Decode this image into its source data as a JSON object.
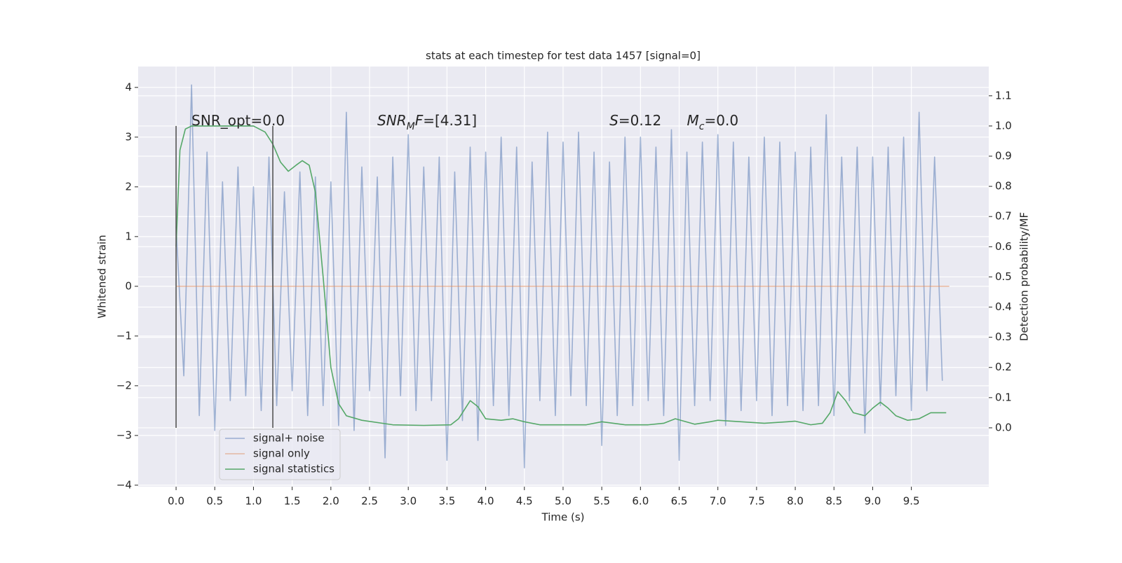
{
  "chart_data": {
    "type": "line",
    "title": "stats at each timestep for test data 1457 [signal=0]",
    "xlabel": "Time (s)",
    "ylabel": "Whitened strain",
    "y2label": "Detection probability/MF",
    "xlim": [
      -0.49,
      10.5
    ],
    "ylim": [
      -4.03,
      4.42
    ],
    "y2lim": [
      -0.195,
      1.197
    ],
    "xticks": [
      {
        "value": 0,
        "label": "0.0"
      },
      {
        "value": 0.5,
        "label": "0.5"
      },
      {
        "value": 1,
        "label": "1.0"
      },
      {
        "value": 1.5,
        "label": "1.5"
      },
      {
        "value": 2,
        "label": "2.0"
      },
      {
        "value": 2.5,
        "label": "2.5"
      },
      {
        "value": 3,
        "label": "3.0"
      },
      {
        "value": 3.5,
        "label": "3.5"
      },
      {
        "value": 4,
        "label": "4.0"
      },
      {
        "value": 4.5,
        "label": "4.5"
      },
      {
        "value": 5,
        "label": "5.0"
      },
      {
        "value": 5.5,
        "label": "5.5"
      },
      {
        "value": 6,
        "label": "6.0"
      },
      {
        "value": 6.5,
        "label": "6.5"
      },
      {
        "value": 7,
        "label": "7.0"
      },
      {
        "value": 7.5,
        "label": "7.5"
      },
      {
        "value": 8,
        "label": "8.0"
      },
      {
        "value": 8.5,
        "label": "8.5"
      },
      {
        "value": 9,
        "label": "9.0"
      },
      {
        "value": 9.5,
        "label": "9.5"
      }
    ],
    "yticks": [
      {
        "value": -4,
        "label": "−4"
      },
      {
        "value": -3,
        "label": "−3"
      },
      {
        "value": -2,
        "label": "−2"
      },
      {
        "value": -1,
        "label": "−1"
      },
      0,
      1,
      2,
      3,
      4
    ],
    "y2ticks": [
      {
        "value": 0,
        "label": "0.0"
      },
      {
        "value": 0.1,
        "label": "0.1"
      },
      {
        "value": 0.2,
        "label": "0.2"
      },
      {
        "value": 0.3,
        "label": "0.3"
      },
      {
        "value": 0.4,
        "label": "0.4"
      },
      {
        "value": 0.5,
        "label": "0.5"
      },
      {
        "value": 0.6,
        "label": "0.6"
      },
      {
        "value": 0.7,
        "label": "0.7"
      },
      {
        "value": 0.8,
        "label": "0.8"
      },
      {
        "value": 0.9,
        "label": "0.9"
      },
      {
        "value": 1,
        "label": "1.0"
      },
      {
        "value": 1.1,
        "label": "1.1"
      }
    ],
    "grid": true,
    "legend": "lower left",
    "series": [
      {
        "name": "signal+ noise",
        "color": "#4c72b0",
        "opacity": 0.5,
        "x": [
          0,
          0.1,
          0.2,
          0.3,
          0.4,
          0.5,
          0.6,
          0.7,
          0.8,
          0.9,
          1,
          1.1,
          1.2,
          1.3,
          1.4,
          1.5,
          1.6,
          1.7,
          1.8,
          1.9,
          2,
          2.1,
          2.2,
          2.3,
          2.4,
          2.5,
          2.6,
          2.7,
          2.8,
          2.9,
          3,
          3.1,
          3.2,
          3.3,
          3.4,
          3.5,
          3.6,
          3.7,
          3.8,
          3.9,
          4,
          4.1,
          4.2,
          4.3,
          4.4,
          4.5,
          4.6,
          4.7,
          4.8,
          4.9,
          5,
          5.1,
          5.2,
          5.3,
          5.4,
          5.5,
          5.6,
          5.7,
          5.8,
          5.9,
          6,
          6.1,
          6.2,
          6.3,
          6.4,
          6.5,
          6.6,
          6.7,
          6.8,
          6.9,
          7,
          7.1,
          7.2,
          7.3,
          7.4,
          7.5,
          7.6,
          7.7,
          7.8,
          7.9,
          8,
          8.1,
          8.2,
          8.3,
          8.4,
          8.5,
          8.6,
          8.7,
          8.8,
          8.9,
          9,
          9.1,
          9.2,
          9.3,
          9.4,
          9.5,
          9.6,
          9.7,
          9.8,
          9.9
        ],
        "values": [
          1.2,
          -1.8,
          4.05,
          -2.6,
          2.7,
          -2.9,
          2.1,
          -2.3,
          2.4,
          -2.2,
          2.0,
          -2.5,
          2.6,
          -2.4,
          1.9,
          -2.1,
          2.3,
          -2.6,
          2.2,
          -2.4,
          2.1,
          -2.8,
          3.5,
          -2.9,
          2.4,
          -2.1,
          2.2,
          -3.45,
          2.6,
          -2.2,
          3.05,
          -2.5,
          2.4,
          -2.3,
          2.6,
          -3.5,
          2.3,
          -2.7,
          2.8,
          -3.1,
          2.7,
          -2.4,
          3.0,
          -2.6,
          2.8,
          -3.65,
          2.5,
          -2.3,
          3.1,
          -2.6,
          2.9,
          -2.2,
          3.1,
          -2.4,
          2.7,
          -3.2,
          2.5,
          -2.6,
          3.0,
          -2.4,
          3.0,
          -2.3,
          2.8,
          -2.6,
          3.15,
          -3.5,
          2.7,
          -2.4,
          2.9,
          -2.3,
          3.05,
          -2.8,
          2.9,
          -2.5,
          2.6,
          -2.3,
          3.0,
          -2.6,
          2.9,
          -2.4,
          2.7,
          -2.5,
          2.8,
          -2.4,
          3.45,
          -2.6,
          2.6,
          -2.3,
          2.8,
          -2.95,
          2.6,
          -2.4,
          2.8,
          -2.2,
          3.0,
          -2.5,
          3.5,
          -2.1,
          2.6,
          -1.9
        ]
      },
      {
        "name": "signal only",
        "color": "#dd8452",
        "opacity": 0.5,
        "x": [
          0,
          9.99
        ],
        "values": [
          0,
          0
        ]
      },
      {
        "name": "signal statistics",
        "color": "#55a868",
        "opacity": 1,
        "axis": "y2",
        "x": [
          0,
          0.05,
          0.12,
          0.2,
          0.5,
          1,
          1.15,
          1.25,
          1.35,
          1.45,
          1.55,
          1.63,
          1.72,
          1.8,
          1.9,
          2,
          2.1,
          2.2,
          2.4,
          2.8,
          3.2,
          3.55,
          3.65,
          3.8,
          3.9,
          4,
          4.2,
          4.35,
          4.5,
          4.7,
          5,
          5.3,
          5.5,
          5.8,
          6.1,
          6.3,
          6.45,
          6.7,
          6.9,
          7,
          7.3,
          7.6,
          7.9,
          8,
          8.2,
          8.35,
          8.45,
          8.55,
          8.65,
          8.75,
          8.9,
          9,
          9.1,
          9.2,
          9.3,
          9.45,
          9.6,
          9.75,
          9.95
        ],
        "values": [
          0.6,
          0.92,
          0.99,
          1.0,
          1.0,
          1.0,
          0.98,
          0.94,
          0.88,
          0.85,
          0.87,
          0.885,
          0.87,
          0.78,
          0.5,
          0.2,
          0.08,
          0.04,
          0.025,
          0.01,
          0.008,
          0.01,
          0.03,
          0.09,
          0.07,
          0.03,
          0.025,
          0.03,
          0.02,
          0.01,
          0.01,
          0.01,
          0.02,
          0.01,
          0.01,
          0.015,
          0.03,
          0.012,
          0.02,
          0.025,
          0.02,
          0.015,
          0.02,
          0.022,
          0.01,
          0.015,
          0.05,
          0.12,
          0.09,
          0.05,
          0.04,
          0.065,
          0.085,
          0.065,
          0.04,
          0.025,
          0.03,
          0.05,
          0.05
        ]
      }
    ],
    "vlines": {
      "x": [
        0,
        1.25
      ],
      "ymin": 0,
      "ymax": 1,
      "axis": "y2",
      "color": "#555555"
    },
    "annotations": [
      {
        "x": 0.2,
        "y": 3.32,
        "segments": [
          {
            "text": "SNR_opt=0.0"
          }
        ]
      },
      {
        "x": 2.6,
        "y": 3.32,
        "segments": [
          {
            "text": "SNR",
            "style": "italic"
          },
          {
            "text": "M",
            "style": "sub"
          },
          {
            "text": "F",
            "style": "italic"
          },
          {
            "text": "=[4.31]"
          }
        ]
      },
      {
        "x": 5.6,
        "y": 3.32,
        "segments": [
          {
            "text": "S",
            "style": "italic"
          },
          {
            "text": "=0.12"
          }
        ]
      },
      {
        "x": 6.6,
        "y": 3.32,
        "segments": [
          {
            "text": "M",
            "style": "italic"
          },
          {
            "text": "c",
            "style": "sub"
          },
          {
            "text": "=0.0"
          }
        ]
      }
    ]
  }
}
